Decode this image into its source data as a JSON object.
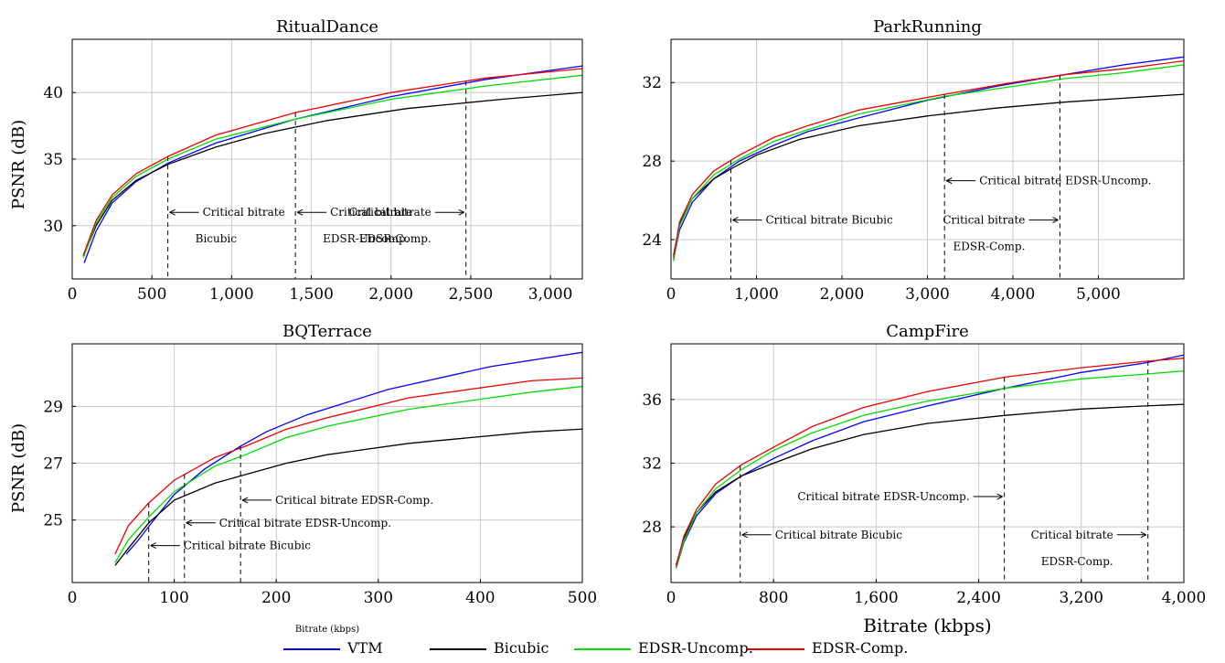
{
  "legend": {
    "items": [
      {
        "label": "VTM",
        "color": "#0000ff"
      },
      {
        "label": "Bicubic",
        "color": "#000000"
      },
      {
        "label": "EDSR-Uncomp.",
        "color": "#00dd00"
      },
      {
        "label": "EDSR-Comp.",
        "color": "#ee0000"
      }
    ]
  },
  "chart_data": [
    {
      "type": "line",
      "title": "RitualDance",
      "xlabel": "",
      "ylabel": "PSNR (dB)",
      "xlim": [
        0,
        3200
      ],
      "ylim": [
        26,
        44
      ],
      "xticks": [
        0,
        500,
        1000,
        1500,
        2000,
        2500,
        3000
      ],
      "xtick_labels": [
        "0",
        "500",
        "1,000",
        "1,500",
        "2,000",
        "2,500",
        "3,000"
      ],
      "yticks": [
        30,
        35,
        40
      ],
      "ytick_labels": [
        "30",
        "35",
        "40"
      ],
      "grid": true,
      "series": [
        {
          "name": "VTM",
          "color": "#0000ff",
          "x": [
            75,
            150,
            250,
            400,
            600,
            900,
            1400,
            2000,
            2600,
            3200
          ],
          "y": [
            27.2,
            29.6,
            31.7,
            33.3,
            34.7,
            36.2,
            38.0,
            39.7,
            41.0,
            42.0
          ]
        },
        {
          "name": "Bicubic",
          "color": "#000000",
          "x": [
            70,
            150,
            250,
            400,
            600,
            900,
            1200,
            1600,
            2100,
            2700,
            3200
          ],
          "y": [
            27.7,
            30.0,
            31.9,
            33.4,
            34.6,
            35.9,
            36.9,
            37.9,
            38.8,
            39.5,
            40.0
          ]
        },
        {
          "name": "EDSR-Uncomp.",
          "color": "#00dd00",
          "x": [
            70,
            150,
            250,
            400,
            600,
            900,
            1400,
            2000,
            2600,
            3200
          ],
          "y": [
            27.6,
            30.2,
            32.1,
            33.7,
            35.0,
            36.5,
            38.0,
            39.5,
            40.5,
            41.3
          ]
        },
        {
          "name": "EDSR-Comp.",
          "color": "#ee0000",
          "x": [
            70,
            150,
            250,
            400,
            600,
            900,
            1400,
            2000,
            2600,
            3200
          ],
          "y": [
            27.8,
            30.4,
            32.3,
            33.9,
            35.2,
            36.8,
            38.5,
            40.0,
            41.1,
            41.8
          ]
        }
      ],
      "annotations": [
        {
          "x": 600,
          "text_lines": [
            "Critical  bitrate",
            "Bicubic"
          ],
          "arrow_y": 31.0
        },
        {
          "x": 1400,
          "text_lines": [
            "Critical  bitrate",
            "EDSR-Uncomp."
          ],
          "arrow_y": 31.0
        },
        {
          "x": 2470,
          "text_lines": [
            "Critical  bitrate",
            "EDSR-Comp."
          ],
          "arrow_y": 31.0
        }
      ]
    },
    {
      "type": "line",
      "title": "ParkRunning",
      "xlabel": "",
      "ylabel": "",
      "xlim": [
        0,
        6000
      ],
      "ylim": [
        22,
        34.2
      ],
      "xticks": [
        0,
        1000,
        2000,
        3000,
        4000,
        5000
      ],
      "xtick_labels": [
        "0",
        "1,000",
        "2,000",
        "3,000",
        "4,000",
        "5,000"
      ],
      "yticks": [
        24,
        28,
        32
      ],
      "ytick_labels": [
        "24",
        "28",
        "32"
      ],
      "grid": true,
      "series": [
        {
          "name": "VTM",
          "color": "#0000ff",
          "x": [
            30,
            100,
            250,
            500,
            800,
            1200,
            1600,
            2200,
            3000,
            3800,
            4600,
            5300,
            6000
          ],
          "y": [
            23.0,
            24.5,
            25.9,
            27.1,
            28.0,
            28.8,
            29.5,
            30.2,
            31.1,
            31.8,
            32.4,
            32.9,
            33.3
          ]
        },
        {
          "name": "Bicubic",
          "color": "#000000",
          "x": [
            30,
            100,
            250,
            500,
            700,
            1000,
            1500,
            2200,
            3000,
            3800,
            4600,
            5300,
            6000
          ],
          "y": [
            23.2,
            24.8,
            26.1,
            27.1,
            27.6,
            28.3,
            29.1,
            29.8,
            30.3,
            30.7,
            31.0,
            31.2,
            31.4
          ]
        },
        {
          "name": "EDSR-Uncomp.",
          "color": "#00dd00",
          "x": [
            30,
            100,
            250,
            500,
            800,
            1200,
            1600,
            2200,
            3200,
            4000,
            4600,
            5300,
            6000
          ],
          "y": [
            22.9,
            24.7,
            26.1,
            27.3,
            28.1,
            29.0,
            29.6,
            30.4,
            31.3,
            31.8,
            32.2,
            32.5,
            32.9
          ]
        },
        {
          "name": "EDSR-Comp.",
          "color": "#ee0000",
          "x": [
            30,
            100,
            250,
            500,
            800,
            1200,
            1600,
            2200,
            3200,
            4000,
            4600,
            5300,
            6000
          ],
          "y": [
            23.1,
            24.9,
            26.3,
            27.5,
            28.3,
            29.2,
            29.8,
            30.6,
            31.4,
            32.0,
            32.4,
            32.7,
            33.1
          ]
        }
      ],
      "annotations": [
        {
          "x": 700,
          "text_lines": [
            "Critical  bitrate  Bicubic"
          ],
          "arrow_y": 25.0
        },
        {
          "x": 3200,
          "text_lines": [
            "Critical  bitrate  EDSR-Uncomp."
          ],
          "arrow_y": 27.0
        },
        {
          "x": 4550,
          "text_lines": [
            "Critical  bitrate",
            "EDSR-Comp."
          ],
          "arrow_y": 25.0
        }
      ]
    },
    {
      "type": "line",
      "title": "BQTerrace",
      "xlabel": "Bitrate (kbps)",
      "ylabel": "PSNR (dB)",
      "xlim": [
        0,
        500
      ],
      "ylim": [
        22.8,
        31.2
      ],
      "xticks": [
        0,
        100,
        200,
        300,
        400,
        500
      ],
      "xtick_labels": [
        "0",
        "100",
        "200",
        "300",
        "400",
        "500"
      ],
      "yticks": [
        25,
        27,
        29
      ],
      "ytick_labels": [
        "25",
        "27",
        "29"
      ],
      "grid": true,
      "series": [
        {
          "name": "VTM",
          "color": "#0000ff",
          "x": [
            53,
            65,
            80,
            100,
            130,
            165,
            190,
            230,
            310,
            410,
            500
          ],
          "y": [
            23.8,
            24.3,
            25.0,
            25.9,
            26.8,
            27.6,
            28.1,
            28.7,
            29.6,
            30.4,
            30.9
          ]
        },
        {
          "name": "Bicubic",
          "color": "#000000",
          "x": [
            42,
            55,
            75,
            100,
            140,
            170,
            210,
            250,
            330,
            450,
            500
          ],
          "y": [
            23.4,
            24.0,
            24.9,
            25.7,
            26.3,
            26.6,
            27.0,
            27.3,
            27.7,
            28.1,
            28.2
          ]
        },
        {
          "name": "EDSR-Uncomp.",
          "color": "#00dd00",
          "x": [
            42,
            55,
            75,
            100,
            140,
            170,
            210,
            250,
            330,
            450,
            500
          ],
          "y": [
            23.5,
            24.3,
            25.1,
            26.0,
            26.9,
            27.3,
            27.9,
            28.3,
            28.9,
            29.5,
            29.7
          ]
        },
        {
          "name": "EDSR-Comp.",
          "color": "#ee0000",
          "x": [
            42,
            55,
            75,
            100,
            140,
            170,
            210,
            250,
            330,
            450,
            500
          ],
          "y": [
            23.8,
            24.8,
            25.6,
            26.4,
            27.2,
            27.6,
            28.2,
            28.6,
            29.3,
            29.9,
            30.0
          ]
        }
      ],
      "annotations": [
        {
          "x": 75,
          "text_lines": [
            "Critical  bitrate  Bicubic"
          ],
          "arrow_y": 24.1
        },
        {
          "x": 110,
          "text_lines": [
            "Critical  bitrate  EDSR-Uncomp."
          ],
          "arrow_y": 24.9
        },
        {
          "x": 165,
          "text_lines": [
            "Critical  bitrate  EDSR-Comp."
          ],
          "arrow_y": 25.7
        }
      ]
    },
    {
      "type": "line",
      "title": "CampFire",
      "xlabel": "Bitrate (kbps)",
      "ylabel": "",
      "xlim": [
        0,
        4000
      ],
      "ylim": [
        24.5,
        39.5
      ],
      "xticks": [
        0,
        800,
        1600,
        2400,
        3200,
        4000
      ],
      "xtick_labels": [
        "0",
        "800",
        "1,600",
        "2,400",
        "3,200",
        "4,000"
      ],
      "yticks": [
        28,
        32,
        36
      ],
      "ytick_labels": [
        "28",
        "32",
        "36"
      ],
      "grid": true,
      "series": [
        {
          "name": "VTM",
          "color": "#0000ff",
          "x": [
            40,
            100,
            200,
            350,
            550,
            800,
            1100,
            1500,
            2000,
            2600,
            3200,
            3700,
            4000
          ],
          "y": [
            25.4,
            27.0,
            28.7,
            30.1,
            31.2,
            32.3,
            33.4,
            34.6,
            35.6,
            36.7,
            37.7,
            38.3,
            38.8
          ]
        },
        {
          "name": "Bicubic",
          "color": "#000000",
          "x": [
            40,
            100,
            200,
            350,
            550,
            800,
            1100,
            1500,
            2000,
            2600,
            3200,
            3700,
            4000
          ],
          "y": [
            25.6,
            27.3,
            28.9,
            30.2,
            31.2,
            32.0,
            32.9,
            33.8,
            34.5,
            35.0,
            35.4,
            35.6,
            35.7
          ]
        },
        {
          "name": "EDSR-Uncomp.",
          "color": "#00dd00",
          "x": [
            40,
            100,
            200,
            350,
            550,
            800,
            1100,
            1500,
            2000,
            2600,
            3200,
            3700,
            4000
          ],
          "y": [
            25.4,
            27.1,
            28.9,
            30.4,
            31.6,
            32.8,
            33.9,
            35.0,
            35.9,
            36.7,
            37.3,
            37.6,
            37.8
          ]
        },
        {
          "name": "EDSR-Comp.",
          "color": "#ee0000",
          "x": [
            40,
            100,
            200,
            350,
            550,
            800,
            1100,
            1500,
            2000,
            2600,
            3200,
            3700,
            4000
          ],
          "y": [
            25.5,
            27.4,
            29.1,
            30.7,
            31.9,
            33.0,
            34.3,
            35.5,
            36.5,
            37.4,
            38.0,
            38.4,
            38.6
          ]
        }
      ],
      "annotations": [
        {
          "x": 540,
          "text_lines": [
            "Critical  bitrate  Bicubic"
          ],
          "arrow_y": 27.5
        },
        {
          "x": 2600,
          "text_lines": [
            "Critical  bitrate  EDSR-Uncomp."
          ],
          "arrow_y": 29.9
        },
        {
          "x": 3720,
          "text_lines": [
            "Critical  bitrate",
            "EDSR-Comp."
          ],
          "arrow_y": 27.5
        }
      ]
    }
  ]
}
